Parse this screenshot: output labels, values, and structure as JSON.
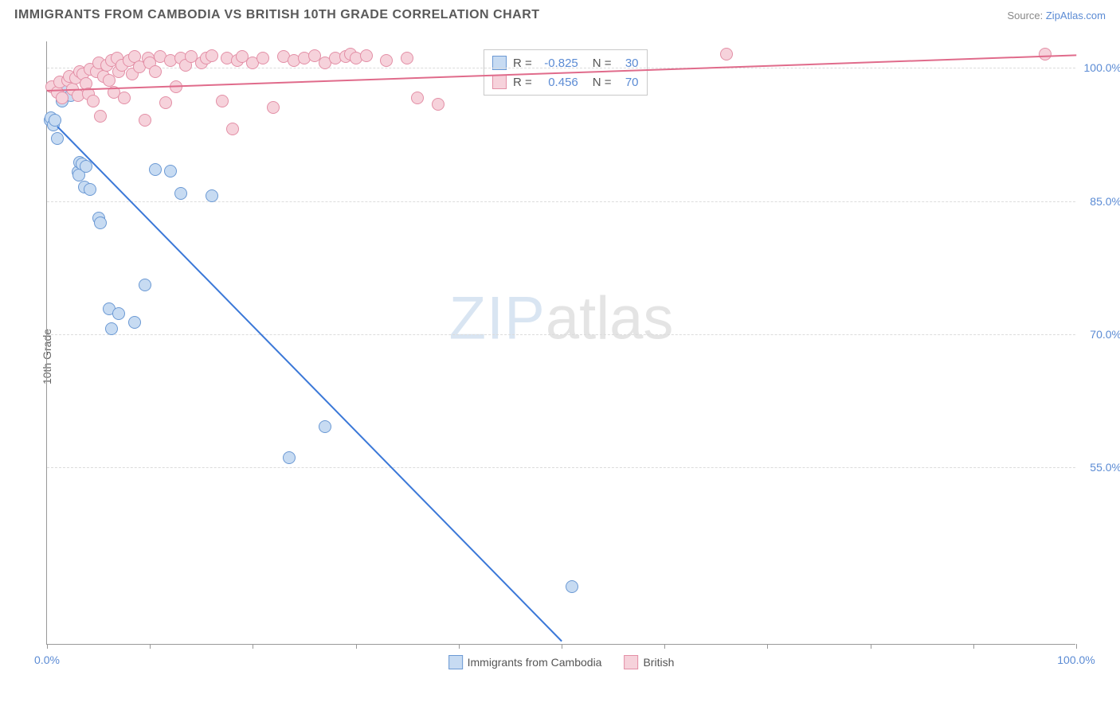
{
  "title": "IMMIGRANTS FROM CAMBODIA VS BRITISH 10TH GRADE CORRELATION CHART",
  "source_prefix": "Source: ",
  "source_link": "ZipAtlas.com",
  "ylabel": "10th Grade",
  "watermark_bold": "ZIP",
  "watermark_light": "atlas",
  "chart": {
    "type": "scatter",
    "xlim": [
      0,
      100
    ],
    "ylim": [
      35,
      103
    ],
    "yticks": [
      {
        "v": 55.0,
        "label": "55.0%"
      },
      {
        "v": 70.0,
        "label": "70.0%"
      },
      {
        "v": 85.0,
        "label": "85.0%"
      },
      {
        "v": 100.0,
        "label": "100.0%"
      }
    ],
    "xtick_positions": [
      0,
      10,
      20,
      30,
      40,
      50,
      60,
      70,
      80,
      90,
      100
    ],
    "xtick_labels": {
      "0": "0.0%",
      "100": "100.0%"
    },
    "grid_color": "#dcdcdc",
    "axis_color": "#999999",
    "background_color": "#ffffff",
    "marker_radius": 8,
    "marker_border_width": 1,
    "series": [
      {
        "name": "Immigrants from Cambodia",
        "fill": "#c7dbf2",
        "stroke": "#6b99d4",
        "trend_color": "#3b78d8",
        "r_value": "-0.825",
        "n_value": "30",
        "trend": {
          "x1": 1,
          "y1": 93.5,
          "x2": 50,
          "y2": 35.5
        },
        "points": [
          [
            0.3,
            94
          ],
          [
            0.4,
            94.3
          ],
          [
            0.6,
            93.5
          ],
          [
            0.8,
            94
          ],
          [
            1.0,
            92
          ],
          [
            1.5,
            96.2
          ],
          [
            2.0,
            97.6
          ],
          [
            2.3,
            96.8
          ],
          [
            3.0,
            88.2
          ],
          [
            3.1,
            87.8
          ],
          [
            3.2,
            89.3
          ],
          [
            3.4,
            89.1
          ],
          [
            3.6,
            86.5
          ],
          [
            3.8,
            88.8
          ],
          [
            4.2,
            86.2
          ],
          [
            5.0,
            83
          ],
          [
            5.2,
            82.5
          ],
          [
            6.0,
            72.8
          ],
          [
            6.3,
            70.5
          ],
          [
            7.0,
            72.2
          ],
          [
            8.5,
            71.2
          ],
          [
            9.5,
            75.5
          ],
          [
            10.5,
            88.5
          ],
          [
            12.0,
            88.3
          ],
          [
            13.0,
            85.8
          ],
          [
            16.0,
            85.5
          ],
          [
            23.5,
            56.0
          ],
          [
            27.0,
            59.5
          ],
          [
            51.0,
            41.5
          ]
        ]
      },
      {
        "name": "British",
        "fill": "#f6d2db",
        "stroke": "#e38fa6",
        "trend_color": "#e06b8b",
        "r_value": "0.456",
        "n_value": "70",
        "trend": {
          "x1": 0,
          "y1": 97.5,
          "x2": 100,
          "y2": 101.5
        },
        "points": [
          [
            0.5,
            97.8
          ],
          [
            1.0,
            97.2
          ],
          [
            1.2,
            98.3
          ],
          [
            1.5,
            96.5
          ],
          [
            2.0,
            98.5
          ],
          [
            2.2,
            99.0
          ],
          [
            2.5,
            97.5
          ],
          [
            2.8,
            98.8
          ],
          [
            3.0,
            96.8
          ],
          [
            3.2,
            99.5
          ],
          [
            3.5,
            99.2
          ],
          [
            3.8,
            98.2
          ],
          [
            4.0,
            97.0
          ],
          [
            4.2,
            99.8
          ],
          [
            4.5,
            96.2
          ],
          [
            4.8,
            99.5
          ],
          [
            5.0,
            100.5
          ],
          [
            5.2,
            94.5
          ],
          [
            5.5,
            99.0
          ],
          [
            5.8,
            100.2
          ],
          [
            6.0,
            98.5
          ],
          [
            6.3,
            100.8
          ],
          [
            6.5,
            97.2
          ],
          [
            6.8,
            101.0
          ],
          [
            7.0,
            99.5
          ],
          [
            7.3,
            100.2
          ],
          [
            7.5,
            96.5
          ],
          [
            8.0,
            100.8
          ],
          [
            8.3,
            99.2
          ],
          [
            8.5,
            101.2
          ],
          [
            9.0,
            100.0
          ],
          [
            9.5,
            94.0
          ],
          [
            9.8,
            101.0
          ],
          [
            10.0,
            100.5
          ],
          [
            10.5,
            99.5
          ],
          [
            11.0,
            101.2
          ],
          [
            11.5,
            96.0
          ],
          [
            12.0,
            100.8
          ],
          [
            12.5,
            97.8
          ],
          [
            13.0,
            101.0
          ],
          [
            13.5,
            100.2
          ],
          [
            14.0,
            101.2
          ],
          [
            15.0,
            100.5
          ],
          [
            15.5,
            101.0
          ],
          [
            16.0,
            101.3
          ],
          [
            17.0,
            96.2
          ],
          [
            17.5,
            101.0
          ],
          [
            18.0,
            93.0
          ],
          [
            18.5,
            100.8
          ],
          [
            19.0,
            101.2
          ],
          [
            20.0,
            100.5
          ],
          [
            21.0,
            101.0
          ],
          [
            22.0,
            95.5
          ],
          [
            23.0,
            101.2
          ],
          [
            24.0,
            100.8
          ],
          [
            25.0,
            101.0
          ],
          [
            26.0,
            101.3
          ],
          [
            27.0,
            100.5
          ],
          [
            28.0,
            101.0
          ],
          [
            29.0,
            101.2
          ],
          [
            29.5,
            101.5
          ],
          [
            30.0,
            101.0
          ],
          [
            31.0,
            101.3
          ],
          [
            33.0,
            100.8
          ],
          [
            35.0,
            101.0
          ],
          [
            36.0,
            96.5
          ],
          [
            38.0,
            95.8
          ],
          [
            66.0,
            101.5
          ],
          [
            97.0,
            101.5
          ]
        ]
      }
    ],
    "legend_top": {
      "r_label": "R =",
      "n_label": "N ="
    },
    "legend_bottom_labels": [
      "Immigrants from Cambodia",
      "British"
    ]
  }
}
